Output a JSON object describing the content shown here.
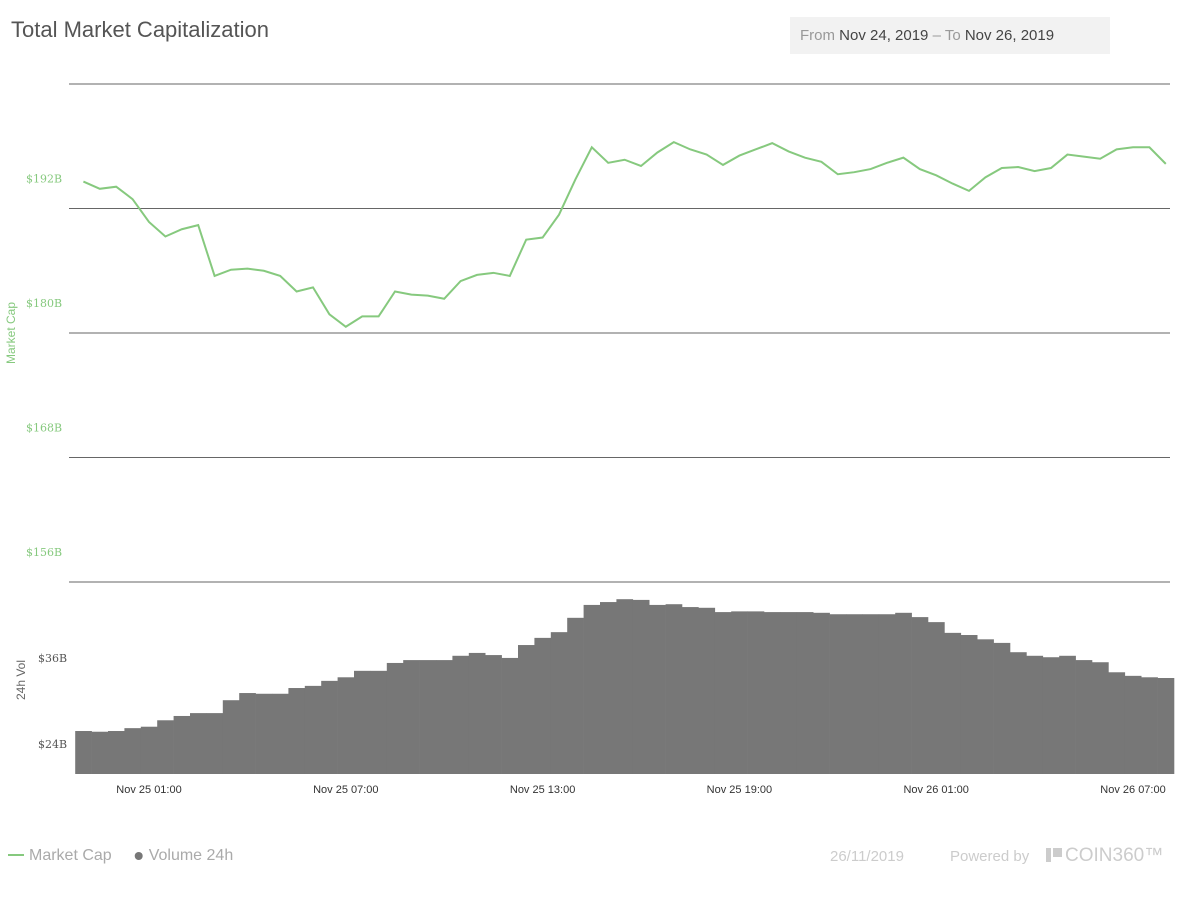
{
  "header": {
    "title": "Total Market Capitalization",
    "range": {
      "from_label": "From",
      "from": "Nov 24, 2019",
      "separator": "–",
      "to_label": "To",
      "to": "Nov 26, 2019"
    }
  },
  "chart_data": {
    "type": "combo",
    "ylabel": "Market Cap",
    "y2label": "24h Vol",
    "categories": [
      null,
      null,
      null,
      null,
      "Nov 25 01:00",
      null,
      null,
      null,
      null,
      null,
      null,
      null,
      null,
      null,
      null,
      null,
      "Nov 25 07:00",
      null,
      null,
      null,
      null,
      null,
      null,
      null,
      null,
      null,
      null,
      null,
      "Nov 25 13:00",
      null,
      null,
      null,
      null,
      null,
      null,
      null,
      null,
      null,
      null,
      null,
      "Nov 25 19:00",
      null,
      null,
      null,
      null,
      null,
      null,
      null,
      null,
      null,
      null,
      null,
      "Nov 26 01:00",
      null,
      null,
      null,
      null,
      null,
      null,
      null,
      null,
      null,
      null,
      null,
      "Nov 26 07:00",
      null,
      null
    ],
    "series": [
      {
        "name": "Market Cap",
        "type": "line",
        "color": "#86c97e",
        "values": [
          194.6,
          193.9,
          194.1,
          192.9,
          190.7,
          189.3,
          190.0,
          190.4,
          185.5,
          186.1,
          186.2,
          186.0,
          185.5,
          184.0,
          184.4,
          181.8,
          180.6,
          181.6,
          181.6,
          184.0,
          183.7,
          183.6,
          183.3,
          185.0,
          185.6,
          185.8,
          185.5,
          189.0,
          189.2,
          191.4,
          194.8,
          197.9,
          196.4,
          196.7,
          196.1,
          197.4,
          198.4,
          197.7,
          197.2,
          196.2,
          197.1,
          197.7,
          198.3,
          197.5,
          196.9,
          196.5,
          195.3,
          195.5,
          195.8,
          196.4,
          196.9,
          195.8,
          195.2,
          194.4,
          193.7,
          195.0,
          195.9,
          196.0,
          195.6,
          195.9,
          197.2,
          197.0,
          196.8,
          197.7,
          197.9,
          197.9,
          196.3
        ]
      },
      {
        "name": "Volume 24h",
        "type": "bar",
        "axis": "y2",
        "color": "#777777",
        "values": [
          30.0,
          29.9,
          30.0,
          30.4,
          30.6,
          31.5,
          32.1,
          32.5,
          32.5,
          34.3,
          35.3,
          35.2,
          35.2,
          36.0,
          36.3,
          37.0,
          37.5,
          38.4,
          38.4,
          39.5,
          39.9,
          39.9,
          39.9,
          40.5,
          40.9,
          40.6,
          40.2,
          42.0,
          43.0,
          43.8,
          45.8,
          47.6,
          48.0,
          48.4,
          48.3,
          47.6,
          47.7,
          47.3,
          47.2,
          46.6,
          46.7,
          46.7,
          46.6,
          46.6,
          46.6,
          46.5,
          46.3,
          46.3,
          46.3,
          46.3,
          46.5,
          45.9,
          45.2,
          43.7,
          43.4,
          42.8,
          42.3,
          41.0,
          40.5,
          40.3,
          40.5,
          39.9,
          39.6,
          38.2,
          37.7,
          37.5,
          37.4
        ]
      }
    ],
    "ylim": [
      156,
      204
    ],
    "yticks": [
      {
        "value": 156,
        "label": "$156B"
      },
      {
        "value": 168,
        "label": "$168B"
      },
      {
        "value": 180,
        "label": "$180B"
      },
      {
        "value": 192,
        "label": "$192B"
      }
    ],
    "y2lim": [
      24,
      50.8
    ],
    "y2ticks": [
      {
        "value": 24,
        "label": "$24B"
      },
      {
        "value": 36,
        "label": "$36B"
      }
    ],
    "grid": true,
    "legend": "bottom-left"
  },
  "footer": {
    "date": "26/11/2019",
    "powered": "Powered by",
    "brand": "COIN360™"
  }
}
